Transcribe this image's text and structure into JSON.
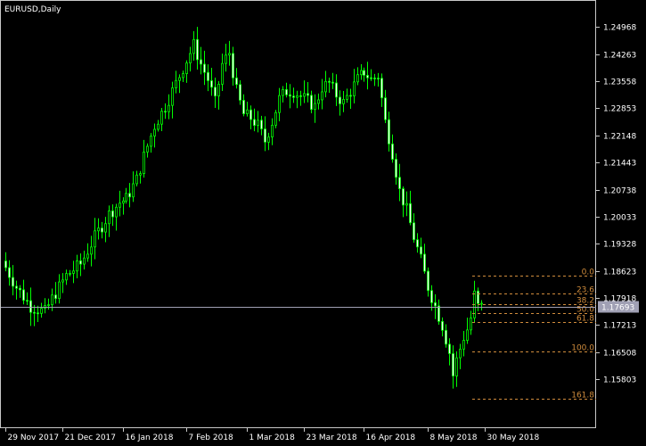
{
  "chart_data": {
    "type": "candlestick",
    "title": "EURUSD,Daily",
    "ylim": [
      1.1453,
      1.2567
    ],
    "y_ticks": [
      "1.24968",
      "1.24263",
      "1.23558",
      "1.22853",
      "1.22148",
      "1.21443",
      "1.20738",
      "1.20033",
      "1.19328",
      "1.18623",
      "1.17918",
      "1.17213",
      "1.16508",
      "1.15803"
    ],
    "x_ticks": [
      "29 Nov 2017",
      "21 Dec 2017",
      "16 Jan 2018",
      "7 Feb 2018",
      "1 Mar 2018",
      "23 Mar 2018",
      "16 Apr 2018",
      "8 May 2018",
      "30 May 2018"
    ],
    "current_price": "1.17693",
    "fibonacci": {
      "levels": [
        "0.0",
        "23.6",
        "38.2",
        "50.0",
        "61.8",
        "100.0",
        "161.8"
      ],
      "prices": [
        1.18504,
        1.18044,
        1.17764,
        1.17524,
        1.17283,
        1.16524,
        1.15296
      ]
    },
    "candle_count": 135,
    "anchors": [
      [
        0,
        1.1888
      ],
      [
        4,
        1.182
      ],
      [
        8,
        1.177
      ],
      [
        12,
        1.1755
      ],
      [
        14,
        1.179
      ],
      [
        18,
        1.185
      ],
      [
        22,
        1.188
      ],
      [
        26,
        1.195
      ],
      [
        30,
        1.201
      ],
      [
        33,
        1.204
      ],
      [
        35,
        1.205
      ],
      [
        38,
        1.21
      ],
      [
        40,
        1.216
      ],
      [
        43,
        1.224
      ],
      [
        46,
        1.229
      ],
      [
        50,
        1.237
      ],
      [
        54,
        1.245
      ],
      [
        56,
        1.24
      ],
      [
        58,
        1.236
      ],
      [
        60,
        1.23
      ],
      [
        62,
        1.24
      ],
      [
        64,
        1.243
      ],
      [
        66,
        1.233
      ],
      [
        68,
        1.227
      ],
      [
        70,
        1.226
      ],
      [
        72,
        1.224
      ],
      [
        74,
        1.22
      ],
      [
        76,
        1.225
      ],
      [
        78,
        1.231
      ],
      [
        80,
        1.233
      ],
      [
        82,
        1.233
      ],
      [
        85,
        1.231
      ],
      [
        88,
        1.229
      ],
      [
        90,
        1.234
      ],
      [
        92,
        1.235
      ],
      [
        94,
        1.232
      ],
      [
        96,
        1.23
      ],
      [
        98,
        1.233
      ],
      [
        100,
        1.236
      ],
      [
        102,
        1.238
      ],
      [
        104,
        1.236
      ],
      [
        106,
        1.237
      ],
      [
        108,
        1.225
      ],
      [
        110,
        1.217
      ],
      [
        112,
        1.207
      ],
      [
        114,
        1.202
      ],
      [
        116,
        1.195
      ],
      [
        118,
        1.189
      ],
      [
        120,
        1.182
      ],
      [
        122,
        1.177
      ],
      [
        124,
        1.172
      ],
      [
        126,
        1.165
      ],
      [
        127,
        1.159
      ],
      [
        128,
        1.163
      ],
      [
        129,
        1.166
      ],
      [
        130,
        1.169
      ],
      [
        131,
        1.171
      ],
      [
        132,
        1.174
      ],
      [
        133,
        1.18
      ],
      [
        134,
        1.1769
      ]
    ]
  }
}
